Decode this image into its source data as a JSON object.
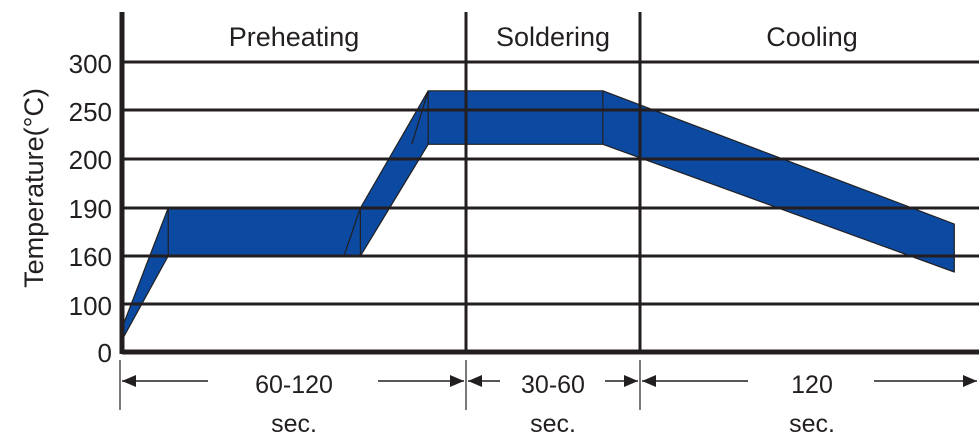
{
  "chart_data": {
    "type": "area",
    "ylabel": "Temperature(°C)",
    "y_ticks": [
      "0",
      "100",
      "160",
      "190",
      "200",
      "250",
      "300"
    ],
    "phases": [
      "Preheating",
      "Soldering",
      "Cooling"
    ],
    "durations": [
      {
        "value": "60-120",
        "unit": "sec."
      },
      {
        "value": "30-60",
        "unit": "sec."
      },
      {
        "value": "120",
        "unit": "sec."
      }
    ],
    "series": [
      {
        "name": "",
        "points": [
          {
            "x": 0,
            "y": 50
          },
          {
            "x": 45,
            "y": 190
          },
          {
            "x": 232,
            "y": 190
          },
          {
            "x": 298,
            "y": 270
          },
          {
            "x": 468,
            "y": 270
          },
          {
            "x": 810,
            "y": 180
          }
        ]
      },
      {
        "name": "",
        "points": [
          {
            "x": 0,
            "y": 25
          },
          {
            "x": 45,
            "y": 160
          },
          {
            "x": 232,
            "y": 160
          },
          {
            "x": 298,
            "y": 215
          },
          {
            "x": 468,
            "y": 215
          },
          {
            "x": 810,
            "y": 140
          }
        ]
      }
    ],
    "fill_color": "#0b4aa0",
    "line_color": "#231f20"
  }
}
